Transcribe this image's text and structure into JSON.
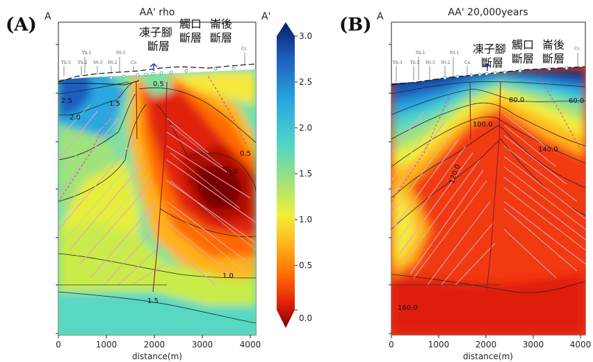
{
  "figure": {
    "panel_a": {
      "letter": "(A)",
      "left_marker": "A",
      "right_marker": "A'",
      "title": "AA' rho",
      "xlabel": "distance(m)",
      "xticks": [
        "0",
        "1000",
        "2000",
        "3000",
        "4000"
      ],
      "contour_labels": [
        "2.5",
        "2.0",
        "1.5",
        "0.5",
        "0.0",
        "1.0",
        "1.5",
        "0.5"
      ]
    },
    "panel_b": {
      "letter": "(B)",
      "left_marker": "A",
      "title": "AA' 20,000years",
      "xlabel": "distance(m)",
      "xticks": [
        "0",
        "1000",
        "2000",
        "3000",
        "4000"
      ],
      "contour_labels": [
        "80.0",
        "60.0",
        "100.0",
        "140.0",
        "120.0",
        "160.0"
      ]
    },
    "faults": {
      "f1_line1": "凍子腳",
      "f1_line2": "斷層",
      "f2_line1": "觸口",
      "f2_line2": "斷層",
      "f3_line1": "崙後",
      "f3_line2": "斷層"
    },
    "wells": {
      "top": [
        "Yh-1",
        "Nt-1"
      ],
      "bottom": [
        "Yh-3",
        "Yh-2",
        "Nt-3",
        "Nt-2",
        "Cu",
        "Cc"
      ]
    },
    "colorbar": {
      "ticks": [
        "3.0",
        "2.5",
        "2.0",
        "1.5",
        "1.0",
        "0.5",
        "0.0"
      ],
      "colors": [
        "#0b1d6b",
        "#1f5fbf",
        "#2aa7e0",
        "#52d6c8",
        "#9fe27a",
        "#f2ef3a",
        "#ffb21a",
        "#ff6a00",
        "#e0200c",
        "#7a0000"
      ]
    }
  },
  "chart_data": [
    {
      "type": "heatmap",
      "title": "AA' rho",
      "xlabel": "distance(m)",
      "ylabel": "",
      "xlim": [
        0,
        4100
      ],
      "x_ticks": [
        0,
        1000,
        2000,
        3000,
        4000
      ],
      "color_scale": {
        "min": 0.0,
        "max": 3.0,
        "ticks": [
          0.0,
          0.5,
          1.0,
          1.5,
          2.0,
          2.5,
          3.0
        ]
      },
      "contour_levels": [
        0.0,
        0.5,
        1.0,
        1.5,
        2.0,
        2.5
      ],
      "annotations": [
        "凍子腳斷層",
        "觸口斷層",
        "崙後斷層"
      ]
    },
    {
      "type": "heatmap",
      "title": "AA' 20,000years",
      "xlabel": "distance(m)",
      "ylabel": "",
      "xlim": [
        0,
        4100
      ],
      "x_ticks": [
        0,
        1000,
        2000,
        3000,
        4000
      ],
      "contour_levels": [
        60.0,
        80.0,
        100.0,
        120.0,
        140.0,
        160.0
      ],
      "annotations": [
        "凍子腳斷層",
        "觸口斷層",
        "崙後斷層"
      ]
    }
  ]
}
